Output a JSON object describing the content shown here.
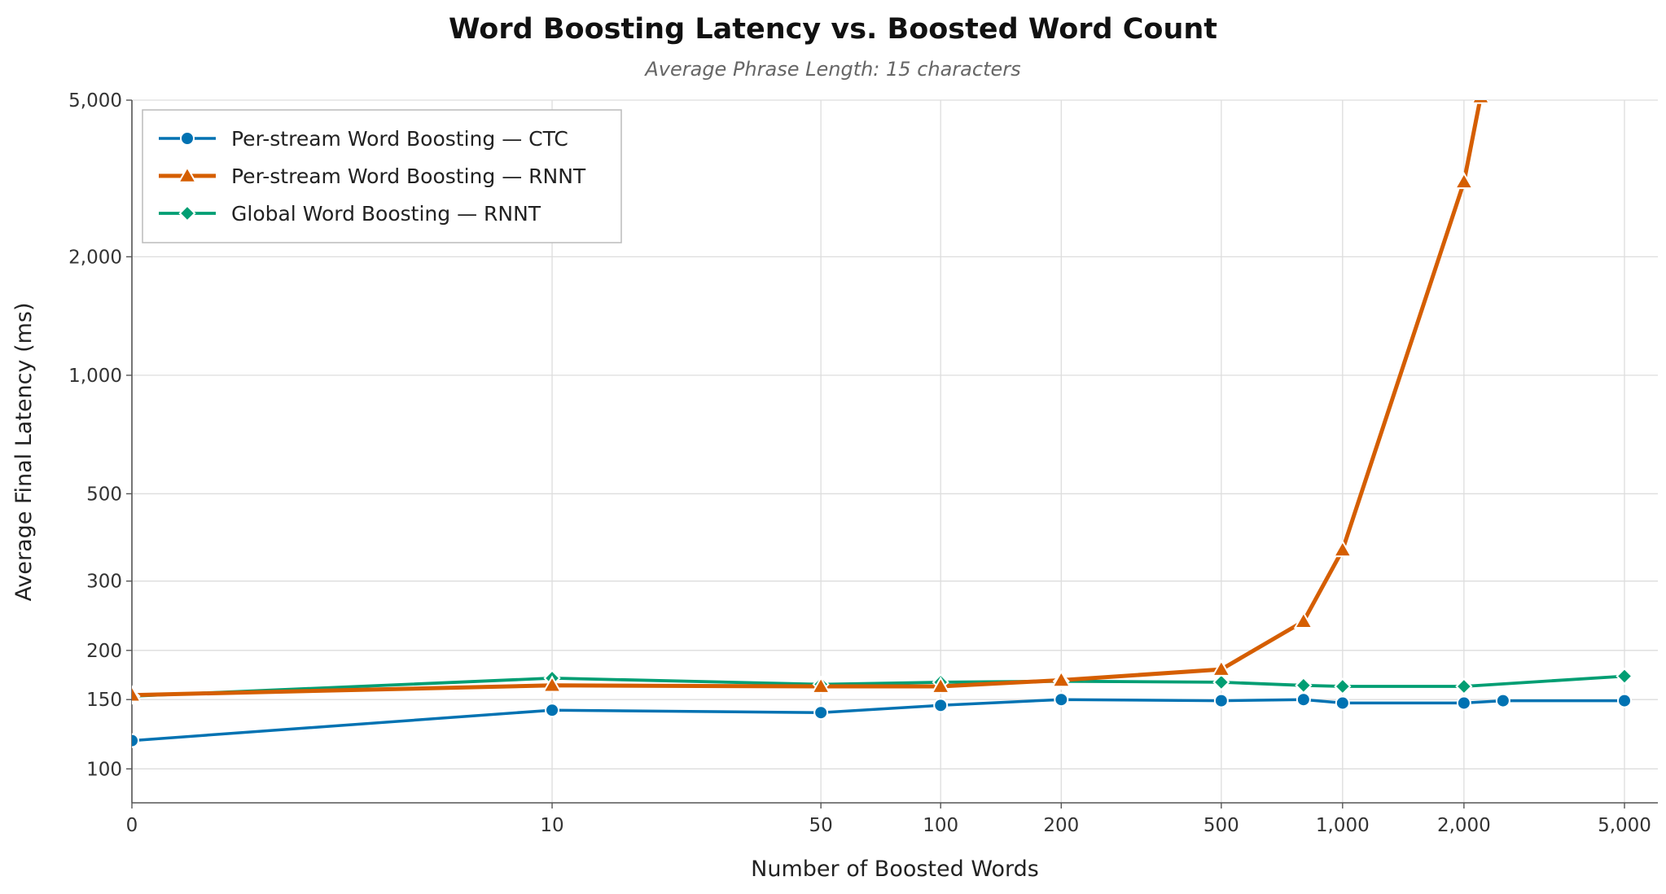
{
  "chart_data": {
    "type": "line",
    "title": "Word Boosting Latency vs. Boosted Word Count",
    "subtitle": "Average Phrase Length: 15 characters",
    "xlabel": "Number of Boosted Words",
    "ylabel": "Average Final Latency (ms)",
    "x_scale": "symlog",
    "y_scale": "log",
    "xlim": [
      0,
      5500
    ],
    "ylim": [
      82,
      5000
    ],
    "x_ticks": [
      0,
      10,
      50,
      100,
      200,
      500,
      1000,
      2000,
      5000
    ],
    "x_tick_labels": [
      "0",
      "10",
      "50",
      "100",
      "200",
      "500",
      "1,000",
      "2,000",
      "5,000"
    ],
    "y_ticks": [
      100,
      150,
      200,
      300,
      500,
      1000,
      2000,
      5000
    ],
    "y_tick_labels": [
      "100",
      "150",
      "200",
      "300",
      "500",
      "1,000",
      "2,000",
      "5,000"
    ],
    "grid": true,
    "legend_position": "top-left",
    "series": [
      {
        "name": "Per-stream Word Boosting — CTC",
        "color": "#0072b2",
        "marker": "circle",
        "x": [
          0,
          10,
          50,
          100,
          200,
          500,
          800,
          1000,
          2000,
          2500,
          5000
        ],
        "y": [
          118,
          141,
          139,
          145,
          150,
          149,
          150,
          147,
          147,
          149,
          149
        ]
      },
      {
        "name": "Per-stream Word Boosting — RNNT",
        "color": "#d55e00",
        "marker": "triangle",
        "x": [
          0,
          10,
          50,
          100,
          200,
          500,
          800,
          1000,
          2000,
          2200
        ],
        "y": [
          154,
          163,
          162,
          162,
          168,
          179,
          237,
          360,
          3100,
          5100
        ]
      },
      {
        "name": "Global Word Boosting — RNNT",
        "color": "#009e73",
        "marker": "diamond",
        "x": [
          0,
          10,
          50,
          100,
          200,
          500,
          800,
          1000,
          2000,
          5000
        ],
        "y": [
          153,
          170,
          164,
          166,
          167,
          166,
          163,
          162,
          162,
          172
        ]
      }
    ]
  }
}
